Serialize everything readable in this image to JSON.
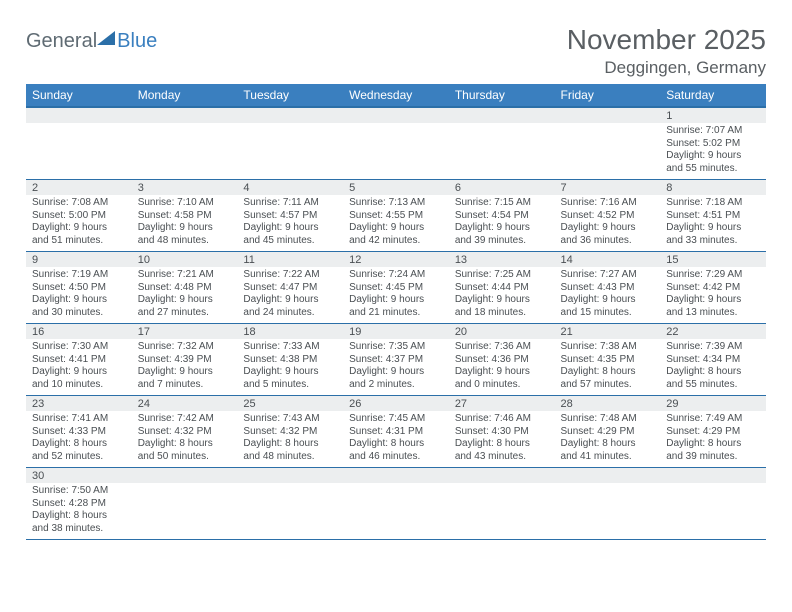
{
  "logo": {
    "general": "General",
    "blue": "Blue"
  },
  "title": "November 2025",
  "location": "Deggingen, Germany",
  "colors": {
    "header_bg": "#3a7fbf",
    "header_border": "#2b6fa8",
    "daynum_bg": "#eceeef",
    "text": "#4a4f53",
    "page_bg": "#ffffff"
  },
  "weekdays": [
    "Sunday",
    "Monday",
    "Tuesday",
    "Wednesday",
    "Thursday",
    "Friday",
    "Saturday"
  ],
  "weeks": [
    [
      null,
      null,
      null,
      null,
      null,
      null,
      {
        "n": "1",
        "sr": "7:07 AM",
        "ss": "5:02 PM",
        "dl": "9 hours and 55 minutes."
      }
    ],
    [
      {
        "n": "2",
        "sr": "7:08 AM",
        "ss": "5:00 PM",
        "dl": "9 hours and 51 minutes."
      },
      {
        "n": "3",
        "sr": "7:10 AM",
        "ss": "4:58 PM",
        "dl": "9 hours and 48 minutes."
      },
      {
        "n": "4",
        "sr": "7:11 AM",
        "ss": "4:57 PM",
        "dl": "9 hours and 45 minutes."
      },
      {
        "n": "5",
        "sr": "7:13 AM",
        "ss": "4:55 PM",
        "dl": "9 hours and 42 minutes."
      },
      {
        "n": "6",
        "sr": "7:15 AM",
        "ss": "4:54 PM",
        "dl": "9 hours and 39 minutes."
      },
      {
        "n": "7",
        "sr": "7:16 AM",
        "ss": "4:52 PM",
        "dl": "9 hours and 36 minutes."
      },
      {
        "n": "8",
        "sr": "7:18 AM",
        "ss": "4:51 PM",
        "dl": "9 hours and 33 minutes."
      }
    ],
    [
      {
        "n": "9",
        "sr": "7:19 AM",
        "ss": "4:50 PM",
        "dl": "9 hours and 30 minutes."
      },
      {
        "n": "10",
        "sr": "7:21 AM",
        "ss": "4:48 PM",
        "dl": "9 hours and 27 minutes."
      },
      {
        "n": "11",
        "sr": "7:22 AM",
        "ss": "4:47 PM",
        "dl": "9 hours and 24 minutes."
      },
      {
        "n": "12",
        "sr": "7:24 AM",
        "ss": "4:45 PM",
        "dl": "9 hours and 21 minutes."
      },
      {
        "n": "13",
        "sr": "7:25 AM",
        "ss": "4:44 PM",
        "dl": "9 hours and 18 minutes."
      },
      {
        "n": "14",
        "sr": "7:27 AM",
        "ss": "4:43 PM",
        "dl": "9 hours and 15 minutes."
      },
      {
        "n": "15",
        "sr": "7:29 AM",
        "ss": "4:42 PM",
        "dl": "9 hours and 13 minutes."
      }
    ],
    [
      {
        "n": "16",
        "sr": "7:30 AM",
        "ss": "4:41 PM",
        "dl": "9 hours and 10 minutes."
      },
      {
        "n": "17",
        "sr": "7:32 AM",
        "ss": "4:39 PM",
        "dl": "9 hours and 7 minutes."
      },
      {
        "n": "18",
        "sr": "7:33 AM",
        "ss": "4:38 PM",
        "dl": "9 hours and 5 minutes."
      },
      {
        "n": "19",
        "sr": "7:35 AM",
        "ss": "4:37 PM",
        "dl": "9 hours and 2 minutes."
      },
      {
        "n": "20",
        "sr": "7:36 AM",
        "ss": "4:36 PM",
        "dl": "9 hours and 0 minutes."
      },
      {
        "n": "21",
        "sr": "7:38 AM",
        "ss": "4:35 PM",
        "dl": "8 hours and 57 minutes."
      },
      {
        "n": "22",
        "sr": "7:39 AM",
        "ss": "4:34 PM",
        "dl": "8 hours and 55 minutes."
      }
    ],
    [
      {
        "n": "23",
        "sr": "7:41 AM",
        "ss": "4:33 PM",
        "dl": "8 hours and 52 minutes."
      },
      {
        "n": "24",
        "sr": "7:42 AM",
        "ss": "4:32 PM",
        "dl": "8 hours and 50 minutes."
      },
      {
        "n": "25",
        "sr": "7:43 AM",
        "ss": "4:32 PM",
        "dl": "8 hours and 48 minutes."
      },
      {
        "n": "26",
        "sr": "7:45 AM",
        "ss": "4:31 PM",
        "dl": "8 hours and 46 minutes."
      },
      {
        "n": "27",
        "sr": "7:46 AM",
        "ss": "4:30 PM",
        "dl": "8 hours and 43 minutes."
      },
      {
        "n": "28",
        "sr": "7:48 AM",
        "ss": "4:29 PM",
        "dl": "8 hours and 41 minutes."
      },
      {
        "n": "29",
        "sr": "7:49 AM",
        "ss": "4:29 PM",
        "dl": "8 hours and 39 minutes."
      }
    ],
    [
      {
        "n": "30",
        "sr": "7:50 AM",
        "ss": "4:28 PM",
        "dl": "8 hours and 38 minutes."
      },
      null,
      null,
      null,
      null,
      null,
      null
    ]
  ],
  "labels": {
    "sunrise": "Sunrise:",
    "sunset": "Sunset:",
    "daylight": "Daylight:"
  }
}
